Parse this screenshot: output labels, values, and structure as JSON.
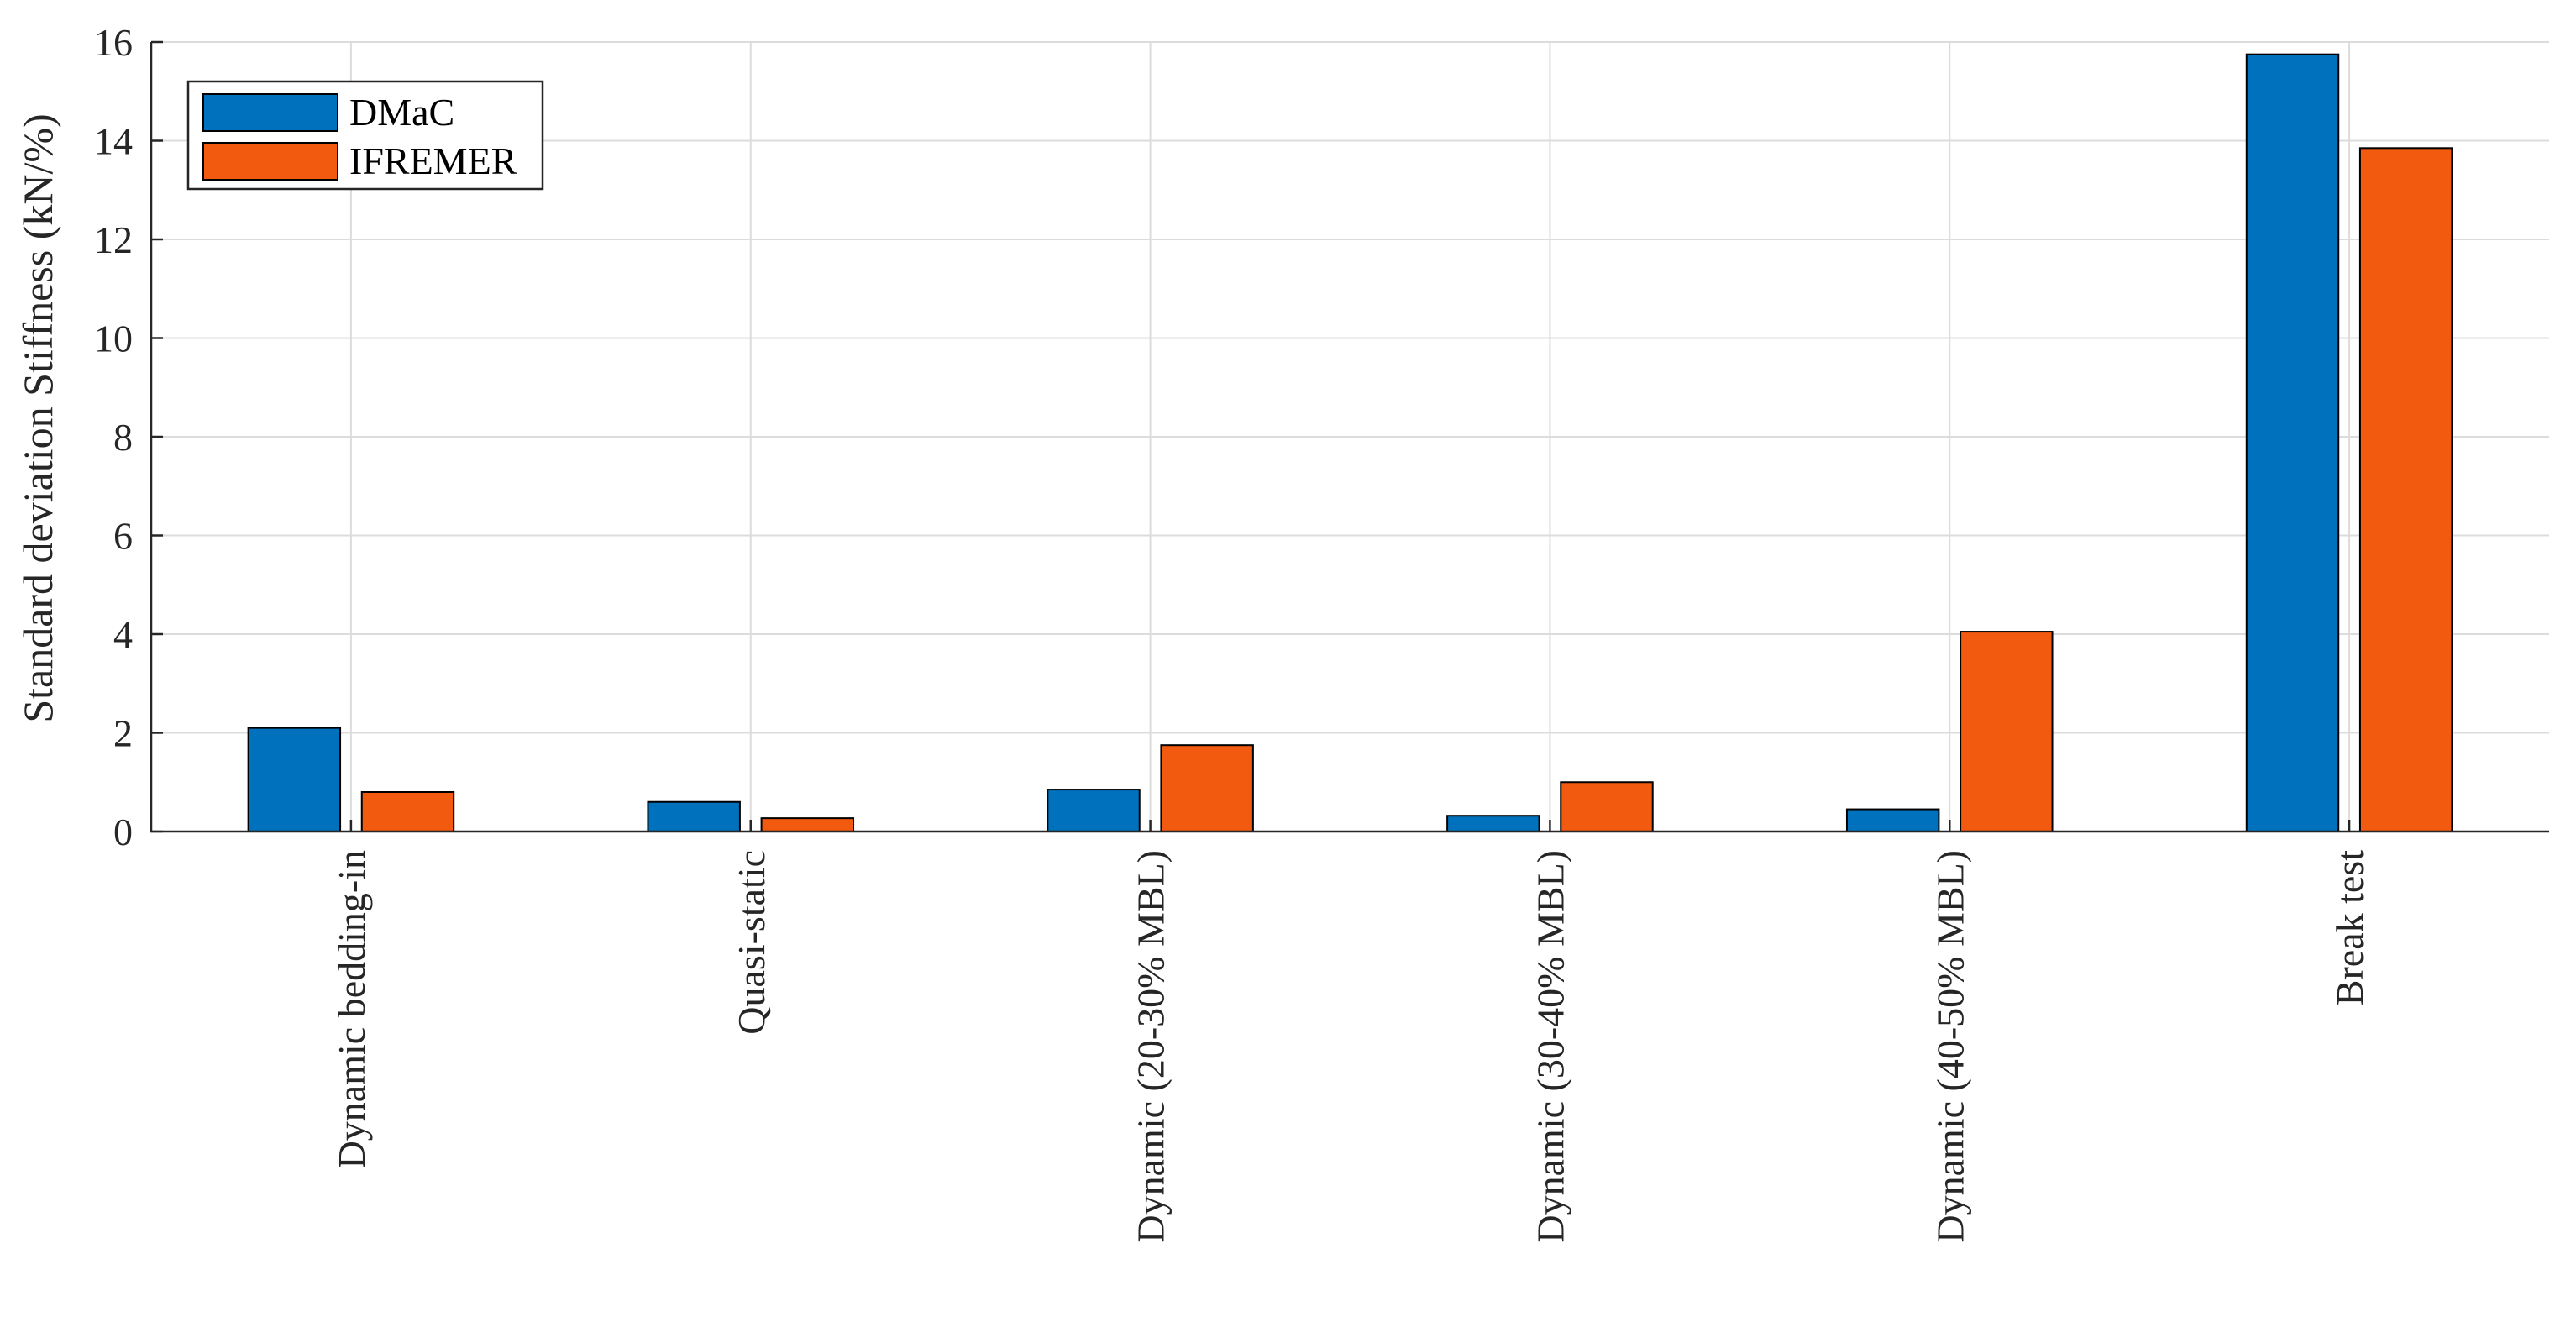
{
  "chart_data": {
    "type": "bar",
    "title": "",
    "xlabel": "",
    "ylabel": "Standard deviation Stiffness (kN/%)",
    "ylim": [
      0,
      16
    ],
    "yticks": [
      0,
      2,
      4,
      6,
      8,
      10,
      12,
      14,
      16
    ],
    "grid": true,
    "legend_position": "top-left",
    "categories": [
      "Dynamic bedding-in",
      "Quasi-static",
      "Dynamic (20-30% MBL)",
      "Dynamic (30-40% MBL)",
      "Dynamic (40-50% MBL)",
      "Break test"
    ],
    "series": [
      {
        "name": "DMaC",
        "color": "#0072BD",
        "values": [
          2.1,
          0.6,
          0.85,
          0.32,
          0.45,
          15.75
        ]
      },
      {
        "name": "IFREMER",
        "color": "#F15A0F",
        "values": [
          0.8,
          0.27,
          1.75,
          1.0,
          4.05,
          13.85
        ]
      }
    ]
  }
}
